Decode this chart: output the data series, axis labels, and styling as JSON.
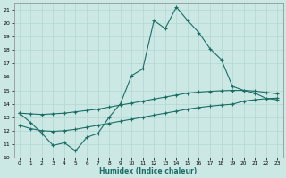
{
  "bg_color": "#cce8e5",
  "grid_color": "#b2d8d4",
  "line_color": "#1a6e64",
  "xlim": [
    -0.5,
    23.5
  ],
  "ylim": [
    10,
    21.5
  ],
  "xticks": [
    0,
    1,
    2,
    3,
    4,
    5,
    6,
    7,
    8,
    9,
    10,
    11,
    12,
    13,
    14,
    15,
    16,
    17,
    18,
    19,
    20,
    21,
    22,
    23
  ],
  "yticks": [
    10,
    11,
    12,
    13,
    14,
    15,
    16,
    17,
    18,
    19,
    20,
    21
  ],
  "main_x": [
    0,
    1,
    2,
    3,
    4,
    5,
    6,
    7,
    8,
    9,
    10,
    11,
    12,
    13,
    14,
    15,
    16,
    17,
    18,
    19,
    20,
    21,
    22,
    23
  ],
  "main_y": [
    13.3,
    12.6,
    11.8,
    10.9,
    11.1,
    10.5,
    11.5,
    11.8,
    13.0,
    14.0,
    16.1,
    16.6,
    20.2,
    19.6,
    21.2,
    20.2,
    19.3,
    18.1,
    17.3,
    15.3,
    15.0,
    14.8,
    14.4,
    14.3
  ],
  "upper_x": [
    0,
    1,
    2,
    3,
    4,
    5,
    6,
    7,
    8,
    9,
    10,
    11,
    12,
    13,
    14,
    15,
    16,
    17,
    18,
    19,
    20,
    21,
    22,
    23
  ],
  "upper_y": [
    13.3,
    13.25,
    13.2,
    13.25,
    13.3,
    13.4,
    13.5,
    13.6,
    13.75,
    13.9,
    14.05,
    14.2,
    14.35,
    14.5,
    14.65,
    14.8,
    14.87,
    14.93,
    14.97,
    15.0,
    15.0,
    14.95,
    14.85,
    14.75
  ],
  "lower_x": [
    0,
    1,
    2,
    3,
    4,
    5,
    6,
    7,
    8,
    9,
    10,
    11,
    12,
    13,
    14,
    15,
    16,
    17,
    18,
    19,
    20,
    21,
    22,
    23
  ],
  "lower_y": [
    12.4,
    12.15,
    12.0,
    11.95,
    12.0,
    12.1,
    12.25,
    12.4,
    12.55,
    12.7,
    12.85,
    13.0,
    13.15,
    13.3,
    13.45,
    13.6,
    13.72,
    13.82,
    13.9,
    13.97,
    14.2,
    14.3,
    14.38,
    14.42
  ],
  "xlabel": "Humidex (Indice chaleur)",
  "lw": 0.8,
  "ms": 2.5,
  "mew": 0.8
}
